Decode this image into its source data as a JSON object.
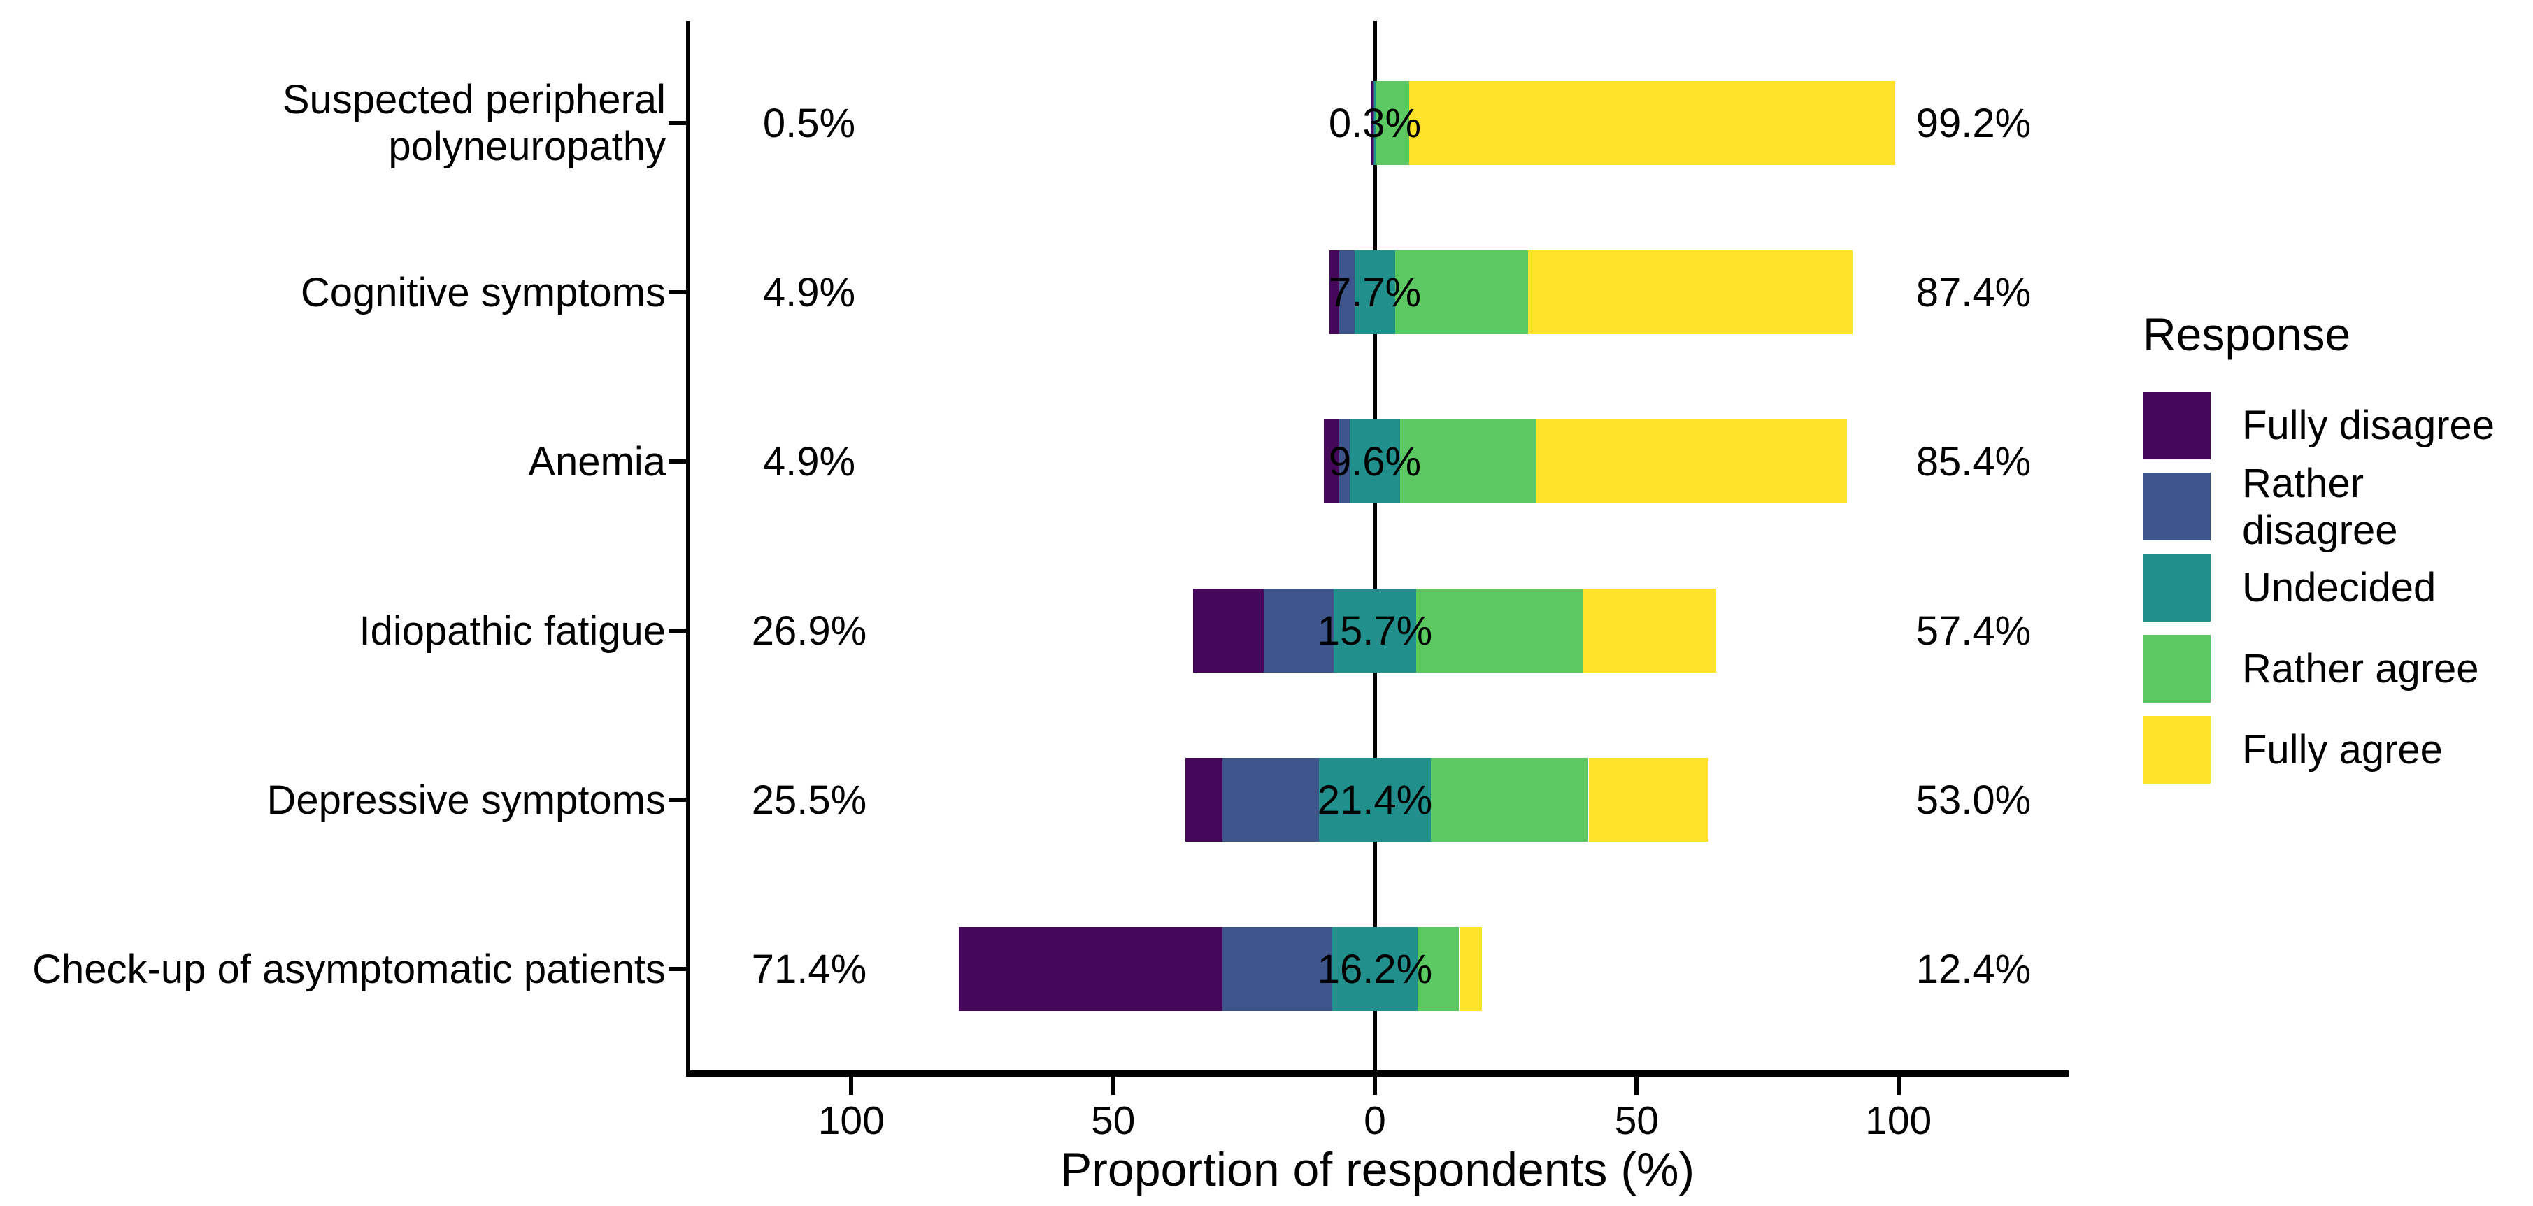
{
  "chart_data": {
    "type": "bar",
    "variant": "diverging-stacked-likert",
    "title": "",
    "xlabel": "Proportion of respondents (%)",
    "background": "#FFFFFF",
    "grid": false,
    "axis_color": "#000000",
    "text_color": "#000000",
    "x_axis": {
      "label": "Proportion of respondents (%)",
      "range_units": [
        -130,
        130
      ],
      "ticks": [
        {
          "value": -100,
          "label": "100"
        },
        {
          "value": -50,
          "label": "50"
        },
        {
          "value": 0,
          "label": "0"
        },
        {
          "value": 50,
          "label": "50"
        },
        {
          "value": 100,
          "label": "100"
        }
      ]
    },
    "colors": {
      "fully_disagree": "#450759",
      "rather_disagree": "#3E558C",
      "undecided": "#21908C",
      "rather_agree": "#5BC862",
      "fully_agree": "#FCE32A"
    },
    "segment_order": [
      "fully_disagree",
      "rather_disagree",
      "undecided",
      "rather_agree",
      "fully_agree"
    ],
    "legend": {
      "title": "Response",
      "position": "right",
      "entries": [
        {
          "key": "fully_disagree",
          "label": "Fully disagree"
        },
        {
          "key": "rather_disagree",
          "label": "Rather disagree"
        },
        {
          "key": "undecided",
          "label": "Undecided"
        },
        {
          "key": "rather_agree",
          "label": "Rather agree"
        },
        {
          "key": "fully_agree",
          "label": "Fully agree"
        }
      ]
    },
    "categories": [
      {
        "label": "Suspected peripheral polyneuropathy",
        "values": {
          "fully_disagree": 0.3,
          "rather_disagree": 0.2,
          "undecided": 0.3,
          "rather_agree": 6.4,
          "fully_agree": 92.8
        },
        "annotations": {
          "left": "0.5%",
          "center": "0.3%",
          "right": "99.2%"
        }
      },
      {
        "label": "Cognitive symptoms",
        "values": {
          "fully_disagree": 1.9,
          "rather_disagree": 3.0,
          "undecided": 7.7,
          "rather_agree": 25.4,
          "fully_agree": 62.0
        },
        "annotations": {
          "left": "4.9%",
          "center": "7.7%",
          "right": "87.4%"
        }
      },
      {
        "label": "Anemia",
        "values": {
          "fully_disagree": 2.9,
          "rather_disagree": 2.0,
          "undecided": 9.6,
          "rather_agree": 26.1,
          "fully_agree": 59.3
        },
        "annotations": {
          "left": "4.9%",
          "center": "9.6%",
          "right": "85.4%"
        }
      },
      {
        "label": "Idiopathic fatigue",
        "values": {
          "fully_disagree": 13.5,
          "rather_disagree": 13.4,
          "undecided": 15.7,
          "rather_agree": 31.9,
          "fully_agree": 25.5
        },
        "annotations": {
          "left": "26.9%",
          "center": "15.7%",
          "right": "57.4%"
        }
      },
      {
        "label": "Depressive symptoms",
        "values": {
          "fully_disagree": 7.1,
          "rather_disagree": 18.4,
          "undecided": 21.4,
          "rather_agree": 30.1,
          "fully_agree": 22.9
        },
        "annotations": {
          "left": "25.5%",
          "center": "21.4%",
          "right": "53.0%"
        }
      },
      {
        "label": "Check-up of asymptomatic patients",
        "values": {
          "fully_disagree": 50.4,
          "rather_disagree": 21.0,
          "undecided": 16.2,
          "rather_agree": 8.0,
          "fully_agree": 4.4
        },
        "annotations": {
          "left": "71.4%",
          "center": "16.2%",
          "right": "12.4%"
        }
      }
    ]
  }
}
